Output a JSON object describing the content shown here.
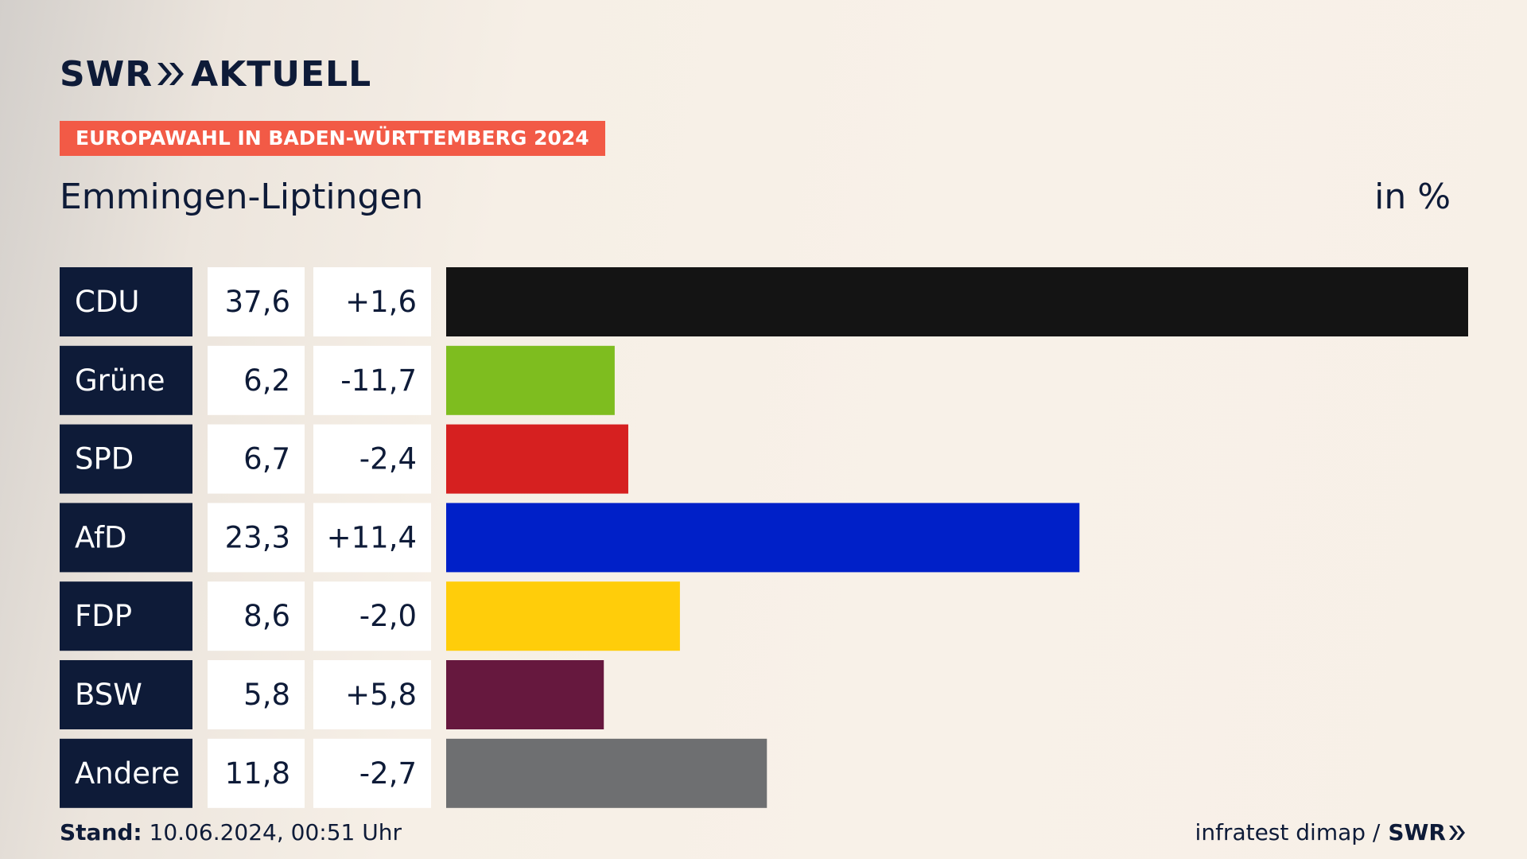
{
  "header": {
    "logo_main": "SWR",
    "logo_secondary": "AKTUELL",
    "banner": "EUROPAWAHL IN BADEN-WÜRTTEMBERG 2024",
    "location": "Emmingen-Liptingen",
    "unit": "in %"
  },
  "footer": {
    "stand_label": "Stand:",
    "stand_value": "10.06.2024, 00:51 Uhr",
    "source": "infratest dimap /",
    "source_logo": "SWR"
  },
  "colors": {
    "label_bg": "#0e1b38",
    "cell_bg": "#ffffff",
    "text_dark": "#0e1b38",
    "banner": "#f25a46"
  },
  "chart_data": {
    "type": "bar",
    "orientation": "horizontal",
    "categories": [
      "CDU",
      "Grüne",
      "SPD",
      "AfD",
      "FDP",
      "BSW",
      "Andere"
    ],
    "values": [
      37.6,
      6.2,
      6.7,
      23.3,
      8.6,
      5.8,
      11.8
    ],
    "value_labels": [
      "37,6",
      "6,2",
      "6,7",
      "23,3",
      "8,6",
      "5,8",
      "11,8"
    ],
    "changes": [
      1.6,
      -11.7,
      -2.4,
      11.4,
      -2.0,
      5.8,
      -2.7
    ],
    "change_labels": [
      "+1,6",
      "-11,7",
      "-2,4",
      "+11,4",
      "-2,0",
      "+5,8",
      "-2,7"
    ],
    "colors": [
      "#141414",
      "#7ebd1f",
      "#d62020",
      "#0020c8",
      "#ffcd0a",
      "#66183e",
      "#6e6f71"
    ],
    "unit": "in %",
    "xlim": [
      0,
      37.6
    ]
  }
}
